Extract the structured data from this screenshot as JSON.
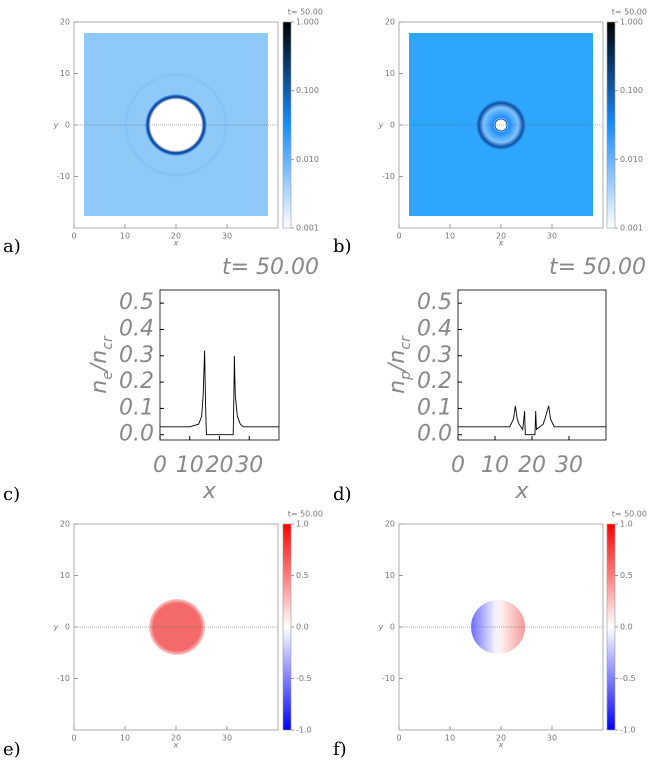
{
  "chart_data": [
    {
      "type": "heatmap",
      "panel_label": "a)",
      "time_label": "t= 50.00",
      "xlabel": "x",
      "ylabel": "y",
      "xlim": [
        0,
        40
      ],
      "xticks": [
        0,
        10,
        20,
        30
      ],
      "ylim": [
        -20,
        20
      ],
      "yticks": [
        -10,
        0,
        10,
        20
      ],
      "cbscale": "log",
      "cblim": [
        0.001,
        1
      ],
      "cmap": [
        "#ffffff",
        "#1a8cff",
        "#000000"
      ],
      "cbticks": [
        {
          "value": 0.001,
          "label": "0.001"
        },
        {
          "value": 0.01,
          "label": "0.010"
        },
        {
          "value": 0.1,
          "label": "0.100"
        },
        {
          "value": 1,
          "label": "1.000"
        }
      ]
    },
    {
      "type": "heatmap",
      "panel_label": "b)",
      "time_label": "t= 50.00",
      "xlabel": "x",
      "ylabel": "y",
      "xlim": [
        0,
        40
      ],
      "xticks": [
        0,
        10,
        20,
        30
      ],
      "ylim": [
        -20,
        20
      ],
      "yticks": [
        -10,
        0,
        10,
        20
      ],
      "cbscale": "log",
      "cblim": [
        0.001,
        1
      ],
      "cmap": [
        "#ffffff",
        "#1a8cff",
        "#000000"
      ],
      "cbticks": [
        {
          "value": 0.001,
          "label": "0.001"
        },
        {
          "value": 0.01,
          "label": "0.010"
        },
        {
          "value": 0.1,
          "label": "0.100"
        },
        {
          "value": 1,
          "label": "1.000"
        }
      ]
    },
    {
      "type": "line",
      "panel_label": "c)",
      "time_label": "t= 50.00",
      "xlabel": "x",
      "ylabel": [
        "n",
        "e",
        "/",
        "n",
        "cr"
      ],
      "xlim": [
        0,
        40
      ],
      "xticks": [
        0,
        10,
        20,
        30
      ],
      "ylim": [
        -0.02,
        0.55
      ],
      "yticks": [
        {
          "value": 0,
          "label": "0.0"
        },
        0.1,
        0.2,
        0.3,
        0.4,
        0.5
      ],
      "color": "#000000",
      "x": [
        0,
        10,
        13,
        14,
        14.5,
        15,
        15.3,
        15.6,
        24.6,
        24.8,
        25,
        25.3,
        26,
        27,
        28,
        40
      ],
      "values": [
        0.03,
        0.03,
        0.04,
        0.07,
        0.15,
        0.32,
        0.12,
        0,
        0,
        0.12,
        0.3,
        0.15,
        0.07,
        0.04,
        0.03,
        0.03
      ]
    },
    {
      "type": "line",
      "panel_label": "d)",
      "time_label": "t= 50.00",
      "xlabel": "x",
      "ylabel": [
        "n",
        "p",
        "/",
        "n",
        "cr"
      ],
      "xlim": [
        0,
        40
      ],
      "xticks": [
        0,
        10,
        20,
        30
      ],
      "ylim": [
        -0.02,
        0.55
      ],
      "yticks": [
        {
          "value": 0,
          "label": "0.0"
        },
        0.1,
        0.2,
        0.3,
        0.4,
        0.5
      ],
      "color": "#000000",
      "x": [
        0,
        14,
        15,
        15.5,
        16,
        16.5,
        17.5,
        18,
        18.2,
        18.4,
        20.8,
        21,
        21.2,
        23,
        23.5,
        24.5,
        25,
        26,
        40
      ],
      "values": [
        0.03,
        0.03,
        0.06,
        0.11,
        0.06,
        0.04,
        0.02,
        0.09,
        0,
        0,
        0,
        0.09,
        0.02,
        0.04,
        0.06,
        0.11,
        0.06,
        0.03,
        0.03
      ]
    },
    {
      "type": "heatmap",
      "panel_label": "e)",
      "time_label": "t= 50.00",
      "xlabel": "x",
      "ylabel": "y",
      "xlim": [
        0,
        40
      ],
      "xticks": [
        0,
        10,
        20,
        30
      ],
      "ylim": [
        -20,
        20
      ],
      "yticks": [
        -10,
        0,
        10,
        20
      ],
      "cbscale": "linear",
      "cblim": [
        -1,
        1
      ],
      "cmap": [
        "#0000ff",
        "#ffffff",
        "#ff0000"
      ],
      "cbticks": [
        {
          "value": -1,
          "label": "-1.0"
        },
        {
          "value": -0.5,
          "label": "-0.5"
        },
        {
          "value": 0,
          "label": "0.0"
        },
        0.5,
        {
          "value": 1,
          "label": "1.0"
        }
      ]
    },
    {
      "type": "heatmap",
      "panel_label": "f)",
      "time_label": "t= 50.00",
      "xlabel": "x",
      "ylabel": "y",
      "xlim": [
        0,
        40
      ],
      "xticks": [
        0,
        10,
        20,
        30
      ],
      "ylim": [
        -20,
        20
      ],
      "yticks": [
        -10,
        0,
        10,
        20
      ],
      "cbscale": "linear",
      "cblim": [
        -1,
        1
      ],
      "cmap": [
        "#0000ff",
        "#ffffff",
        "#ff0000"
      ],
      "cbticks": [
        {
          "value": -1,
          "label": "-1.0"
        },
        {
          "value": -0.5,
          "label": "-0.5"
        },
        {
          "value": 0,
          "label": "0.0"
        },
        0.5,
        {
          "value": 1,
          "label": "1.0"
        }
      ]
    }
  ]
}
